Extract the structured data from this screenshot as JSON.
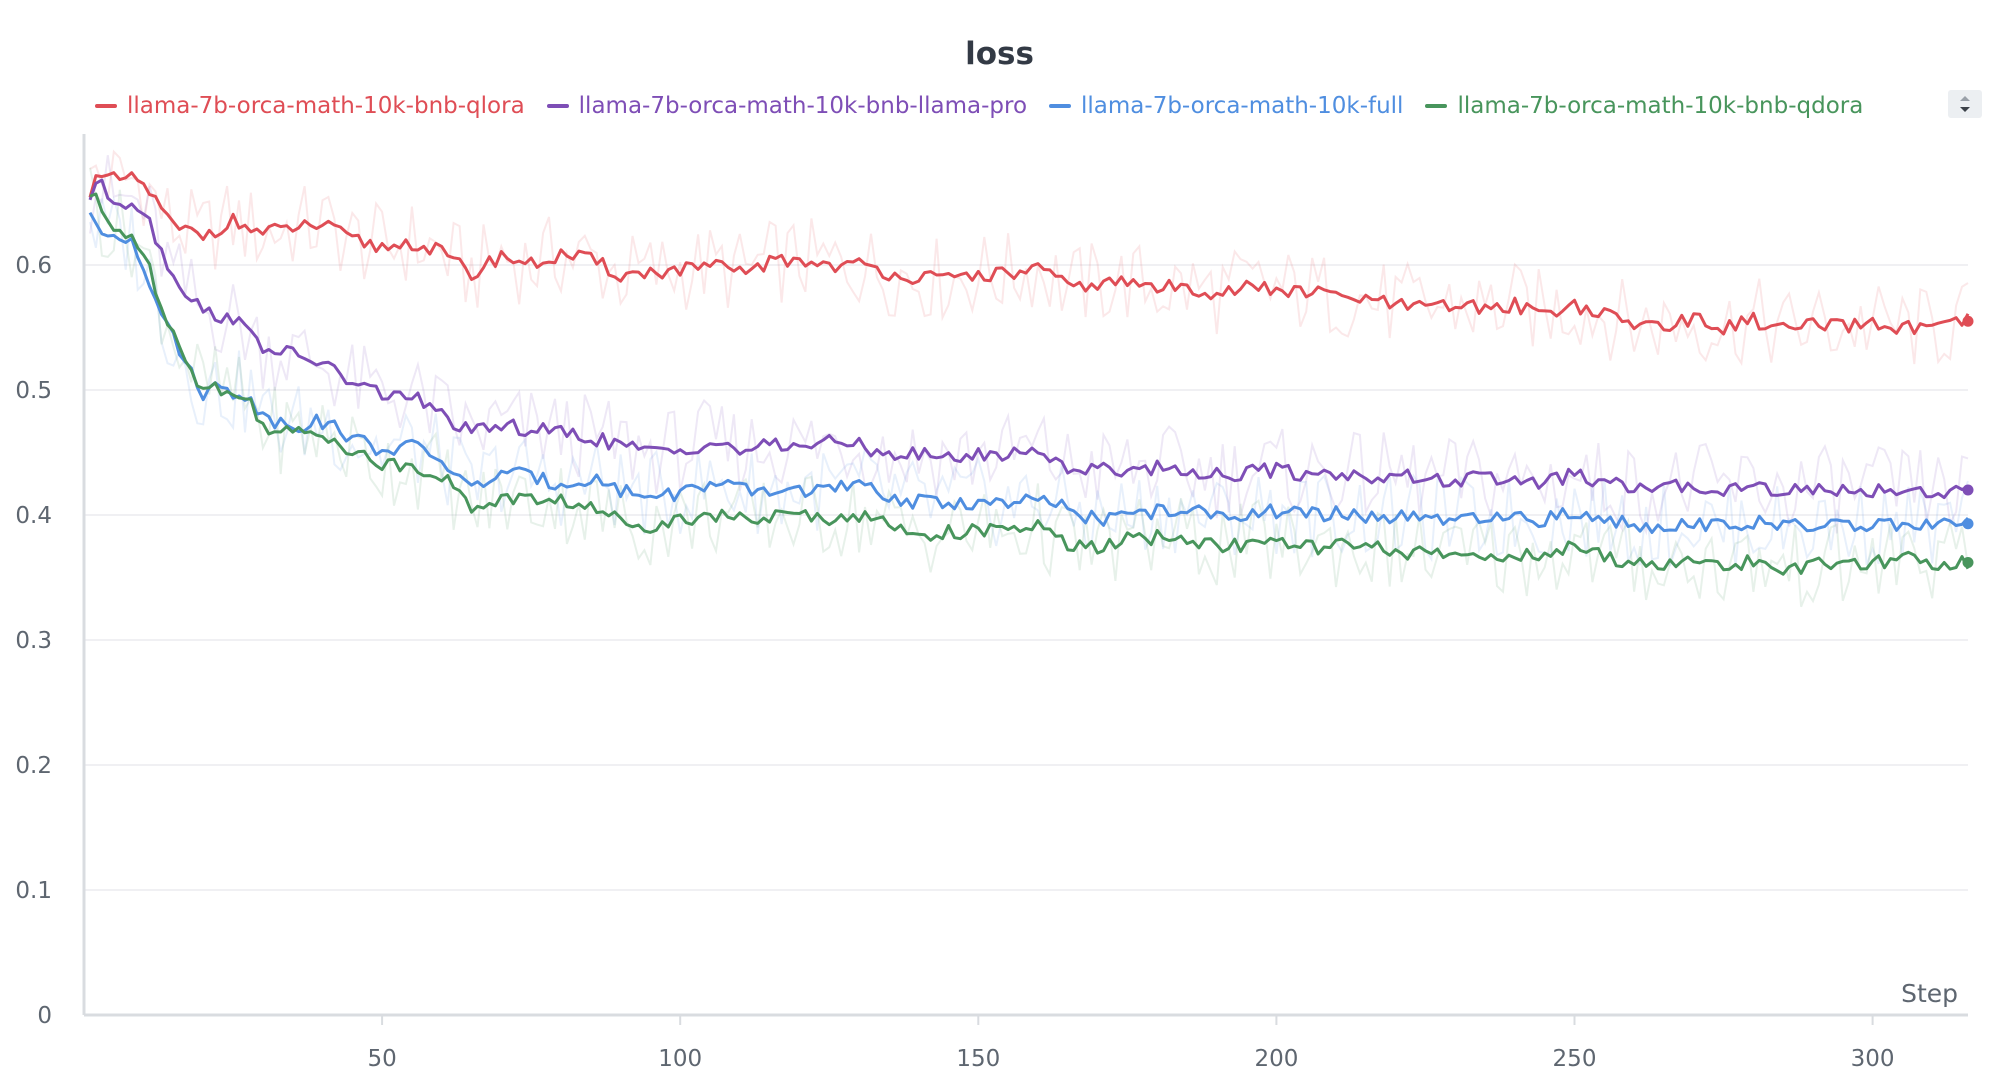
{
  "chart_data": {
    "type": "line",
    "title": "loss",
    "xlabel": "Step",
    "ylabel": "",
    "xlim": [
      0,
      316
    ],
    "ylim": [
      0,
      0.7
    ],
    "xticks": [
      50,
      100,
      150,
      200,
      250,
      300
    ],
    "yticks": [
      0,
      0.1,
      0.2,
      0.3,
      0.4,
      0.5,
      0.6
    ],
    "ytick_labels": [
      "0",
      "0.1",
      "0.2",
      "0.3",
      "0.4",
      "0.5",
      "0.6"
    ],
    "grid": true,
    "legend_position": "top",
    "smoothed": true,
    "series": [
      {
        "name": "llama-7b-orca-math-10k-bnb-qlora",
        "color": "#df4d55",
        "x": [
          1,
          2,
          3,
          8,
          10,
          15,
          20,
          25,
          30,
          35,
          40,
          45,
          50,
          55,
          60,
          65,
          70,
          75,
          80,
          85,
          90,
          95,
          100,
          105,
          110,
          115,
          120,
          125,
          130,
          135,
          140,
          145,
          150,
          155,
          160,
          165,
          170,
          175,
          180,
          185,
          190,
          195,
          200,
          205,
          210,
          215,
          220,
          225,
          230,
          235,
          240,
          245,
          250,
          255,
          260,
          265,
          270,
          275,
          280,
          285,
          290,
          295,
          300,
          305,
          310,
          316
        ],
        "values": [
          0.66,
          0.675,
          0.668,
          0.668,
          0.665,
          0.63,
          0.624,
          0.635,
          0.625,
          0.63,
          0.632,
          0.62,
          0.614,
          0.618,
          0.61,
          0.592,
          0.608,
          0.6,
          0.608,
          0.604,
          0.592,
          0.594,
          0.596,
          0.599,
          0.594,
          0.602,
          0.604,
          0.6,
          0.6,
          0.594,
          0.59,
          0.588,
          0.593,
          0.592,
          0.598,
          0.582,
          0.585,
          0.586,
          0.582,
          0.582,
          0.578,
          0.582,
          0.58,
          0.578,
          0.576,
          0.572,
          0.568,
          0.565,
          0.568,
          0.565,
          0.568,
          0.562,
          0.568,
          0.56,
          0.552,
          0.553,
          0.556,
          0.55,
          0.556,
          0.548,
          0.552,
          0.55,
          0.553,
          0.55,
          0.548,
          0.555
        ]
      },
      {
        "name": "llama-7b-orca-math-10k-bnb-llama-pro",
        "color": "#7e4eb6",
        "x": [
          1,
          2,
          3,
          5,
          8,
          10,
          15,
          18,
          20,
          25,
          30,
          35,
          40,
          45,
          50,
          55,
          60,
          65,
          70,
          75,
          80,
          85,
          90,
          95,
          100,
          105,
          110,
          115,
          120,
          125,
          130,
          135,
          140,
          145,
          150,
          155,
          160,
          165,
          170,
          175,
          180,
          185,
          190,
          195,
          200,
          205,
          210,
          215,
          220,
          225,
          230,
          235,
          240,
          245,
          250,
          255,
          260,
          265,
          270,
          275,
          280,
          285,
          290,
          295,
          300,
          305,
          310,
          316
        ],
        "values": [
          0.655,
          0.665,
          0.662,
          0.652,
          0.65,
          0.645,
          0.59,
          0.575,
          0.562,
          0.558,
          0.535,
          0.528,
          0.522,
          0.505,
          0.497,
          0.495,
          0.48,
          0.465,
          0.472,
          0.468,
          0.466,
          0.462,
          0.456,
          0.45,
          0.452,
          0.458,
          0.452,
          0.455,
          0.456,
          0.458,
          0.456,
          0.449,
          0.448,
          0.446,
          0.448,
          0.449,
          0.452,
          0.438,
          0.436,
          0.437,
          0.438,
          0.436,
          0.432,
          0.434,
          0.436,
          0.432,
          0.434,
          0.43,
          0.432,
          0.428,
          0.428,
          0.429,
          0.428,
          0.426,
          0.432,
          0.425,
          0.422,
          0.421,
          0.424,
          0.42,
          0.424,
          0.42,
          0.42,
          0.42,
          0.42,
          0.421,
          0.418,
          0.42
        ]
      },
      {
        "name": "llama-7b-orca-math-10k-full",
        "color": "#4f8ee0",
        "x": [
          1,
          2,
          3,
          5,
          8,
          10,
          15,
          18,
          20,
          22,
          25,
          28,
          30,
          35,
          40,
          45,
          50,
          55,
          60,
          65,
          70,
          75,
          80,
          85,
          90,
          95,
          100,
          105,
          110,
          115,
          120,
          125,
          130,
          135,
          140,
          145,
          150,
          155,
          160,
          165,
          170,
          175,
          180,
          185,
          190,
          195,
          200,
          205,
          210,
          215,
          220,
          225,
          230,
          235,
          240,
          245,
          250,
          255,
          260,
          265,
          270,
          275,
          280,
          285,
          290,
          295,
          300,
          305,
          310,
          316
        ],
        "values": [
          0.64,
          0.628,
          0.625,
          0.624,
          0.622,
          0.6,
          0.54,
          0.515,
          0.498,
          0.502,
          0.498,
          0.495,
          0.478,
          0.472,
          0.475,
          0.462,
          0.452,
          0.455,
          0.444,
          0.42,
          0.435,
          0.43,
          0.425,
          0.43,
          0.42,
          0.415,
          0.418,
          0.425,
          0.42,
          0.418,
          0.421,
          0.42,
          0.423,
          0.415,
          0.41,
          0.41,
          0.41,
          0.408,
          0.412,
          0.405,
          0.396,
          0.4,
          0.403,
          0.404,
          0.398,
          0.402,
          0.403,
          0.4,
          0.401,
          0.399,
          0.398,
          0.396,
          0.396,
          0.395,
          0.398,
          0.396,
          0.402,
          0.396,
          0.392,
          0.392,
          0.395,
          0.39,
          0.394,
          0.39,
          0.392,
          0.39,
          0.394,
          0.392,
          0.39,
          0.393
        ]
      },
      {
        "name": "llama-7b-orca-math-10k-bnb-qdora",
        "color": "#48955c",
        "x": [
          1,
          2,
          3,
          5,
          8,
          10,
          15,
          18,
          20,
          22,
          25,
          28,
          30,
          35,
          40,
          45,
          50,
          55,
          60,
          65,
          70,
          75,
          80,
          85,
          90,
          95,
          100,
          105,
          110,
          115,
          120,
          125,
          130,
          135,
          140,
          145,
          150,
          155,
          160,
          165,
          170,
          175,
          180,
          185,
          190,
          195,
          200,
          205,
          210,
          215,
          220,
          225,
          230,
          235,
          240,
          245,
          250,
          255,
          260,
          265,
          270,
          275,
          280,
          285,
          290,
          295,
          300,
          305,
          310,
          316
        ],
        "values": [
          0.655,
          0.652,
          0.64,
          0.628,
          0.625,
          0.608,
          0.545,
          0.518,
          0.5,
          0.503,
          0.495,
          0.49,
          0.472,
          0.465,
          0.466,
          0.452,
          0.44,
          0.44,
          0.432,
          0.405,
          0.414,
          0.412,
          0.412,
          0.405,
          0.396,
          0.392,
          0.396,
          0.402,
          0.396,
          0.398,
          0.4,
          0.398,
          0.4,
          0.392,
          0.385,
          0.386,
          0.388,
          0.386,
          0.392,
          0.375,
          0.374,
          0.38,
          0.382,
          0.38,
          0.376,
          0.376,
          0.378,
          0.374,
          0.376,
          0.373,
          0.372,
          0.368,
          0.368,
          0.368,
          0.368,
          0.366,
          0.375,
          0.366,
          0.363,
          0.36,
          0.362,
          0.36,
          0.362,
          0.358,
          0.36,
          0.358,
          0.362,
          0.366,
          0.362,
          0.362
        ]
      }
    ]
  }
}
